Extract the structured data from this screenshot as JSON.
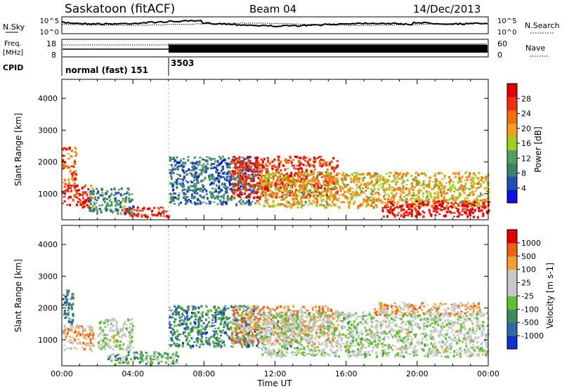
{
  "header": {
    "station": "Saskatoon (fitACF)",
    "beam": "Beam 04",
    "date": "14/Dec/2013"
  },
  "noise_panel": {
    "left_label": "N.Sky",
    "right_label": "N.Search",
    "left_ticks": [
      "10^5",
      "10^0"
    ],
    "right_ticks": [
      "10^5",
      "10^0"
    ]
  },
  "freq_panel": {
    "left_label_top": "Freq.",
    "left_label_bottom": "[MHz]",
    "right_label": "Nave",
    "left_ticks": [
      "18",
      "8"
    ],
    "right_ticks": [
      "60",
      "0"
    ]
  },
  "cpid": {
    "label": "CPID",
    "segments": [
      {
        "name": "normal (fast) 151",
        "start_hour": 0,
        "end_hour": 6
      },
      {
        "name": "3503",
        "start_hour": 6,
        "end_hour": 24
      }
    ]
  },
  "colors": {
    "power_scale": [
      "#1010e0",
      "#2050b0",
      "#40806a",
      "#50a060",
      "#a0d020",
      "#f0a020",
      "#f07010",
      "#f03010",
      "#e00000"
    ],
    "velocity_scale": [
      "#1030d0",
      "#2e6aa8",
      "#3e8a5a",
      "#60c030",
      "#c8c8c8",
      "#c8c8c8",
      "#f0a030",
      "#f06010",
      "#e00000"
    ]
  },
  "chart_data": [
    {
      "type": "heatmap",
      "title": "Power",
      "ylabel": "Slant Range [km]",
      "xlabel": "Time UT",
      "xlim": [
        0,
        24
      ],
      "ylim": [
        180,
        4600
      ],
      "y_ticks": [
        "1000",
        "2000",
        "3000",
        "4000"
      ],
      "x_ticks": [
        "00:00",
        "04:00",
        "08:00",
        "12:00",
        "16:00",
        "20:00",
        "00:00"
      ],
      "colorbar": {
        "label": "Power [dB]",
        "ticks": [
          "4",
          "8",
          "12",
          "16",
          "20",
          "24",
          "28"
        ]
      },
      "regions": [
        {
          "t0": 0.0,
          "t1": 1.6,
          "r0": 600,
          "r1": 1300,
          "level": 0.9
        },
        {
          "t0": 0.0,
          "t1": 0.8,
          "r0": 1300,
          "r1": 2500,
          "level": 0.75
        },
        {
          "t0": 1.5,
          "t1": 4.0,
          "r0": 400,
          "r1": 1200,
          "level": 0.3
        },
        {
          "t0": 3.5,
          "t1": 6.0,
          "r0": 300,
          "r1": 600,
          "level": 0.9
        },
        {
          "t0": 6.0,
          "t1": 11.0,
          "r0": 700,
          "r1": 2200,
          "level": 0.25
        },
        {
          "t0": 9.5,
          "t1": 15.5,
          "r0": 900,
          "r1": 2200,
          "level": 0.85
        },
        {
          "t0": 11.0,
          "t1": 24.0,
          "r0": 600,
          "r1": 1700,
          "level": 0.6
        },
        {
          "t0": 18.0,
          "t1": 24.0,
          "r0": 300,
          "r1": 800,
          "level": 0.95
        }
      ]
    },
    {
      "type": "heatmap",
      "title": "Velocity",
      "ylabel": "Slant Range [km]",
      "xlabel": "Time UT",
      "xlim": [
        0,
        24
      ],
      "ylim": [
        180,
        4600
      ],
      "y_ticks": [
        "1000",
        "2000",
        "3000",
        "4000"
      ],
      "x_ticks": [
        "00:00",
        "04:00",
        "08:00",
        "12:00",
        "16:00",
        "20:00",
        "00:00"
      ],
      "colorbar": {
        "label": "Velocity [m s-1]",
        "ticks": [
          "1000",
          "500",
          "100",
          "25",
          "-25",
          "-100",
          "-500",
          "-1000"
        ]
      },
      "regions": [
        {
          "t0": 0.0,
          "t1": 1.8,
          "r0": 700,
          "r1": 1500,
          "level": 0.65
        },
        {
          "t0": 0.0,
          "t1": 0.6,
          "r0": 1500,
          "r1": 2600,
          "level": 0.2
        },
        {
          "t0": 2.0,
          "t1": 4.0,
          "r0": 700,
          "r1": 1700,
          "level": 0.5
        },
        {
          "t0": 2.5,
          "t1": 6.5,
          "r0": 250,
          "r1": 650,
          "level": 0.35
        },
        {
          "t0": 6.0,
          "t1": 11.0,
          "r0": 800,
          "r1": 2100,
          "level": 0.25
        },
        {
          "t0": 9.5,
          "t1": 15.5,
          "r0": 900,
          "r1": 2100,
          "level": 0.7
        },
        {
          "t0": 11.0,
          "t1": 24.0,
          "r0": 500,
          "r1": 1900,
          "level": 0.5
        },
        {
          "t0": 17.5,
          "t1": 23.5,
          "r0": 1800,
          "r1": 2200,
          "level": 0.7
        }
      ]
    }
  ]
}
